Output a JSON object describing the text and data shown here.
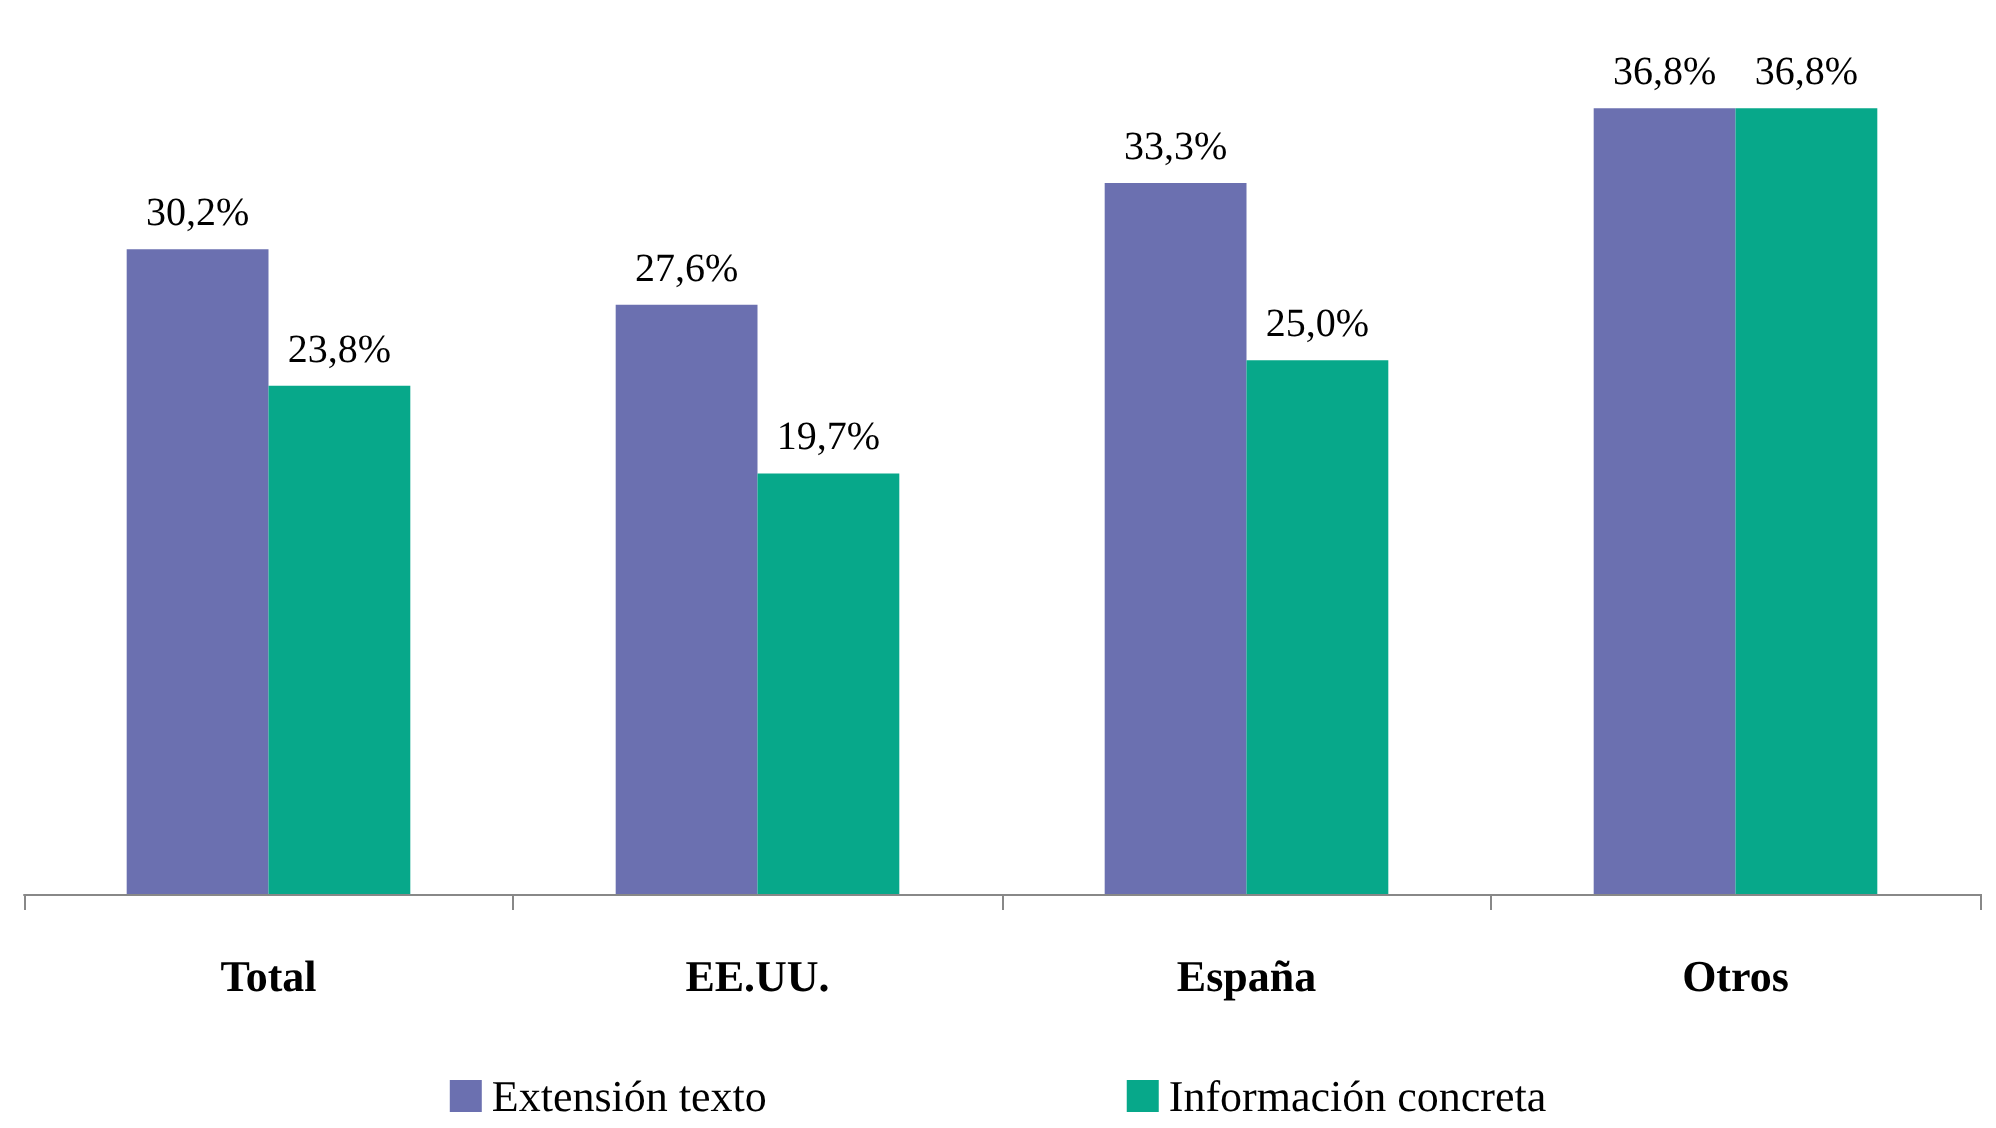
{
  "chart_data": {
    "type": "bar",
    "categories": [
      "Total",
      "EE.UU.",
      "España",
      "Otros"
    ],
    "series": [
      {
        "name": "Extensión texto",
        "color": "#6b70b0",
        "values": [
          30.2,
          27.6,
          33.3,
          36.8
        ],
        "value_labels": [
          "30,2%",
          "27,6%",
          "33,3%",
          "36,8%"
        ]
      },
      {
        "name": "Información concreta",
        "color": "#07a88a",
        "values": [
          23.8,
          19.7,
          25.0,
          36.8
        ],
        "value_labels": [
          "23,8%",
          "19,7%",
          "25,0%",
          "36,8%"
        ]
      }
    ],
    "legend": "bottom"
  }
}
